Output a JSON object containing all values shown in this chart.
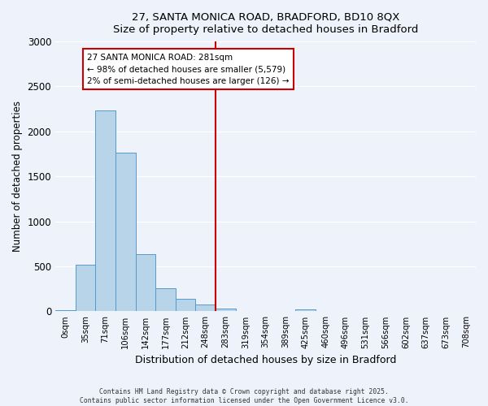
{
  "title1": "27, SANTA MONICA ROAD, BRADFORD, BD10 8QX",
  "title2": "Size of property relative to detached houses in Bradford",
  "xlabel": "Distribution of detached houses by size in Bradford",
  "ylabel": "Number of detached properties",
  "bin_labels": [
    "0sqm",
    "35sqm",
    "71sqm",
    "106sqm",
    "142sqm",
    "177sqm",
    "212sqm",
    "248sqm",
    "283sqm",
    "319sqm",
    "354sqm",
    "389sqm",
    "425sqm",
    "460sqm",
    "496sqm",
    "531sqm",
    "566sqm",
    "602sqm",
    "637sqm",
    "673sqm",
    "708sqm"
  ],
  "bar_values": [
    15,
    520,
    2230,
    1760,
    635,
    260,
    140,
    75,
    35,
    5,
    0,
    0,
    20,
    0,
    0,
    0,
    0,
    0,
    0,
    0,
    0
  ],
  "bar_color": "#b8d4e8",
  "bar_edge_color": "#5599cc",
  "vline_x": 8,
  "vline_color": "#cc0000",
  "annotation_text": "27 SANTA MONICA ROAD: 281sqm\n← 98% of detached houses are smaller (5,579)\n2% of semi-detached houses are larger (126) →",
  "annotation_box_color": "#ffffff",
  "annotation_box_edge": "#cc0000",
  "ylim": [
    0,
    3000
  ],
  "yticks": [
    0,
    500,
    1000,
    1500,
    2000,
    2500,
    3000
  ],
  "footer1": "Contains HM Land Registry data © Crown copyright and database right 2025.",
  "footer2": "Contains public sector information licensed under the Open Government Licence v3.0.",
  "bg_color": "#eef2fb"
}
